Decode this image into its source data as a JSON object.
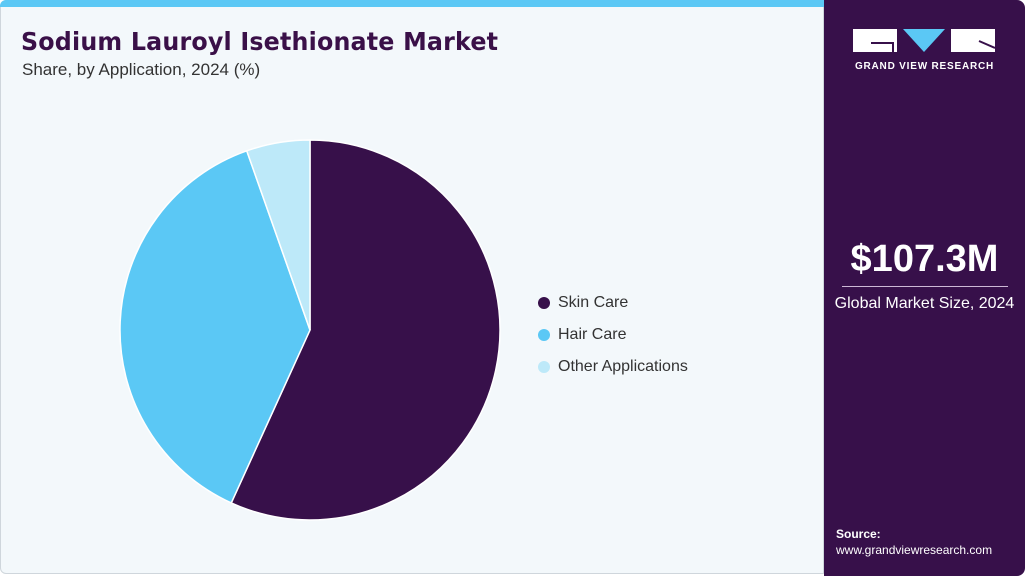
{
  "header": {
    "title": "Sodium Lauroyl Isethionate Market",
    "subtitle": "Share, by Application, 2024 (%)"
  },
  "sidebar": {
    "logo_text": "GRAND VIEW RESEARCH",
    "market_size": "$107.3M",
    "market_size_label": "Global Market Size, 2024",
    "source_label": "Source:",
    "source_url": "www.grandviewresearch.com"
  },
  "colors": {
    "accent": "#5bc8f5",
    "brand": "#37104a"
  },
  "chart_data": {
    "type": "pie",
    "title": "Sodium Lauroyl Isethionate Market",
    "subtitle": "Share, by Application, 2024 (%)",
    "legend_position": "right",
    "categories": [
      "Skin Care",
      "Hair Care",
      "Other Applications"
    ],
    "values": [
      56.8,
      37.8,
      5.4
    ],
    "colors": [
      "#37104a",
      "#5bc8f5",
      "#bde9f9"
    ]
  }
}
